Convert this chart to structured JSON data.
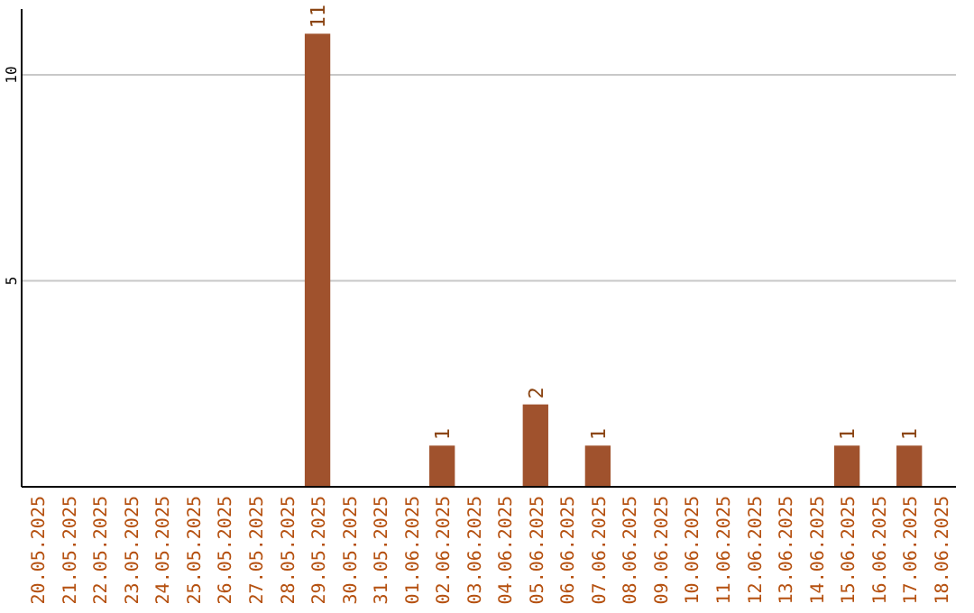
{
  "chart_data": {
    "type": "bar",
    "categories": [
      "20.05.2025",
      "21.05.2025",
      "22.05.2025",
      "23.05.2025",
      "24.05.2025",
      "25.05.2025",
      "26.05.2025",
      "27.05.2025",
      "28.05.2025",
      "29.05.2025",
      "30.05.2025",
      "31.05.2025",
      "01.06.2025",
      "02.06.2025",
      "03.06.2025",
      "04.06.2025",
      "05.06.2025",
      "06.06.2025",
      "07.06.2025",
      "08.06.2025",
      "09.06.2025",
      "10.06.2025",
      "11.06.2025",
      "12.06.2025",
      "13.06.2025",
      "14.06.2025",
      "15.06.2025",
      "16.06.2025",
      "17.06.2025",
      "18.06.2025"
    ],
    "values": [
      0,
      0,
      0,
      0,
      0,
      0,
      0,
      0,
      0,
      11,
      0,
      0,
      0,
      1,
      0,
      0,
      2,
      0,
      1,
      0,
      0,
      0,
      0,
      0,
      0,
      0,
      1,
      0,
      1,
      0
    ],
    "value_labels": [
      null,
      null,
      null,
      null,
      null,
      null,
      null,
      null,
      null,
      "11",
      null,
      null,
      null,
      "1",
      null,
      null,
      "2",
      null,
      "1",
      null,
      null,
      null,
      null,
      null,
      null,
      null,
      "1",
      null,
      "1",
      null
    ],
    "color": "#a0522d",
    "ylim": [
      0,
      11.6
    ],
    "yticks": [
      5,
      10
    ],
    "grid": "y"
  }
}
